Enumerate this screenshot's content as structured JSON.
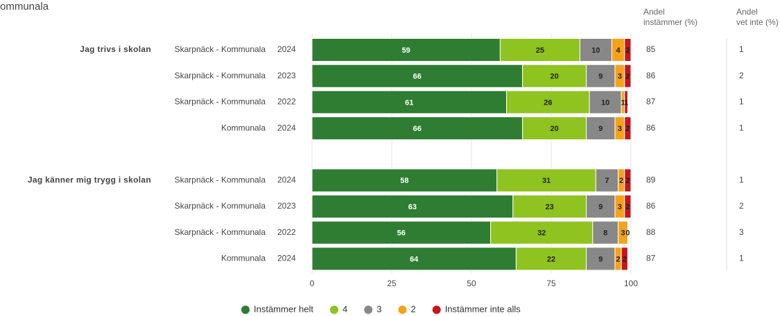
{
  "chart_data": {
    "type": "bar",
    "orientation": "horizontal",
    "stacked": true,
    "title": "ommunala",
    "groups": [
      {
        "label": "Jag trivs i skolan",
        "start": 0
      },
      {
        "label": "Jag känner mig trygg i skolan",
        "start": 4
      }
    ],
    "categories": [
      "Skarpnäck - Kommunala",
      "Skarpnäck - Kommunala",
      "Skarpnäck - Kommunala",
      "Kommunala",
      "Skarpnäck - Kommunala",
      "Skarpnäck - Kommunala",
      "Skarpnäck - Kommunala",
      "Kommunala"
    ],
    "years": [
      "2024",
      "2023",
      "2022",
      "2024",
      "2024",
      "2023",
      "2022",
      "2024"
    ],
    "series": [
      {
        "name": "Instämmer helt",
        "color": "#2e7d32",
        "label_color": "#ffffff",
        "values": [
          59,
          66,
          61,
          66,
          58,
          63,
          56,
          64
        ]
      },
      {
        "name": "4",
        "color": "#8fc31f",
        "label_color": "#222222",
        "values": [
          25,
          20,
          26,
          20,
          31,
          23,
          32,
          22
        ]
      },
      {
        "name": "3",
        "color": "#888888",
        "label_color": "#222222",
        "values": [
          10,
          9,
          10,
          9,
          7,
          9,
          8,
          9
        ]
      },
      {
        "name": "2",
        "color": "#f5a21b",
        "label_color": "#222222",
        "values": [
          4,
          3,
          1,
          3,
          2,
          3,
          3,
          2
        ]
      },
      {
        "name": "Instämmer inte alls",
        "color": "#c4161c",
        "label_color": "#222222",
        "values": [
          2,
          2,
          1,
          2,
          2,
          2,
          0,
          2
        ]
      }
    ],
    "columns": [
      {
        "header": [
          "Andel",
          "instämmer (%)"
        ],
        "values": [
          85,
          86,
          87,
          86,
          89,
          86,
          88,
          87
        ]
      },
      {
        "header": [
          "Andel",
          "vet inte (%)"
        ],
        "values": [
          1,
          2,
          1,
          1,
          1,
          2,
          3,
          1
        ]
      }
    ],
    "xlim": [
      0,
      100
    ],
    "xticks": [
      0,
      25,
      50,
      75,
      100
    ],
    "grid": true
  }
}
